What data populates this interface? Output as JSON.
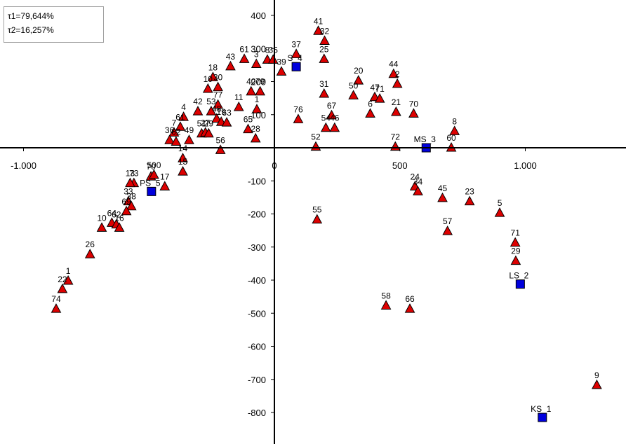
{
  "legend": {
    "tau1": "τ1=79,644%",
    "tau2": "τ2=16,257%"
  },
  "chart_data": {
    "type": "scatter",
    "title": "",
    "xlabel": "",
    "ylabel": "",
    "xlim": [
      -1100,
      1400
    ],
    "ylim": [
      -890,
      430
    ],
    "grid": false,
    "x_ticks": [
      {
        "value": -1000,
        "label": "-1.000"
      },
      {
        "value": 0,
        "label": "0"
      },
      {
        "value": 500,
        "label": "500"
      },
      {
        "value": 1000,
        "label": "1.000"
      }
    ],
    "y_ticks": [
      {
        "value": 400,
        "label": "400"
      },
      {
        "value": 300,
        "label": "300"
      },
      {
        "value": 200,
        "label": "200"
      },
      {
        "value": 100,
        "label": "100"
      },
      {
        "value": -100,
        "label": "-100"
      },
      {
        "value": -200,
        "label": "-200"
      },
      {
        "value": -300,
        "label": "-300"
      },
      {
        "value": -400,
        "label": "-400"
      },
      {
        "value": -500,
        "label": "-500"
      },
      {
        "value": -600,
        "label": "-600"
      },
      {
        "value": -700,
        "label": "-700"
      },
      {
        "value": -800,
        "label": "-800"
      }
    ],
    "colors": {
      "object_marker": "#dd0000",
      "variable_marker": "#0000dd",
      "axis": "#000000"
    },
    "series": [
      {
        "marker": "triangle",
        "points": [
          {
            "label": "41",
            "x": 175,
            "y": 355
          },
          {
            "label": "32",
            "x": 200,
            "y": 325
          },
          {
            "label": "37",
            "x": 87,
            "y": 285
          },
          {
            "label": "25",
            "x": 198,
            "y": 270
          },
          {
            "label": "44",
            "x": 475,
            "y": 225
          },
          {
            "label": "2",
            "x": 490,
            "y": 195
          },
          {
            "label": "20",
            "x": 335,
            "y": 205
          },
          {
            "label": "50",
            "x": 315,
            "y": 160
          },
          {
            "label": "47",
            "x": 400,
            "y": 155
          },
          {
            "label": "71",
            "x": 420,
            "y": 150
          },
          {
            "label": "31",
            "x": 198,
            "y": 165
          },
          {
            "label": "6",
            "x": 382,
            "y": 105
          },
          {
            "label": "21",
            "x": 485,
            "y": 110
          },
          {
            "label": "70",
            "x": 555,
            "y": 105
          },
          {
            "label": "67",
            "x": 228,
            "y": 100
          },
          {
            "label": "76",
            "x": 95,
            "y": 88
          },
          {
            "label": "54",
            "x": 205,
            "y": 62
          },
          {
            "label": "46",
            "x": 240,
            "y": 62
          },
          {
            "label": "52",
            "x": 165,
            "y": 5
          },
          {
            "label": "72",
            "x": 482,
            "y": 5
          },
          {
            "label": "60",
            "x": 705,
            "y": 2
          },
          {
            "label": "8",
            "x": 718,
            "y": 52
          },
          {
            "label": "24",
            "x": 560,
            "y": -115
          },
          {
            "label": "34",
            "x": 572,
            "y": -130
          },
          {
            "label": "45",
            "x": 670,
            "y": -150
          },
          {
            "label": "23",
            "x": 778,
            "y": -160
          },
          {
            "label": "5",
            "x": 898,
            "y": -195
          },
          {
            "label": "57",
            "x": 690,
            "y": -250
          },
          {
            "label": "71",
            "x": 960,
            "y": -285
          },
          {
            "label": "29",
            "x": 962,
            "y": -340
          },
          {
            "label": "55",
            "x": 170,
            "y": -215
          },
          {
            "label": "58",
            "x": 445,
            "y": -475
          },
          {
            "label": "66",
            "x": 540,
            "y": -485
          },
          {
            "label": "9",
            "x": 1285,
            "y": -715
          },
          {
            "label": "43",
            "x": -175,
            "y": 248
          },
          {
            "label": "61",
            "x": -120,
            "y": 270
          },
          {
            "label": "3",
            "x": -72,
            "y": 255
          },
          {
            "label": "8",
            "x": -28,
            "y": 268
          },
          {
            "label": "35",
            "x": -5,
            "y": 268
          },
          {
            "label": "39",
            "x": 28,
            "y": 232
          },
          {
            "label": "18",
            "x": -245,
            "y": 215
          },
          {
            "label": "10",
            "x": -265,
            "y": 180
          },
          {
            "label": "30",
            "x": -225,
            "y": 185
          },
          {
            "label": "40",
            "x": -93,
            "y": 172
          },
          {
            "label": "79",
            "x": -57,
            "y": 172
          },
          {
            "label": "42",
            "x": -305,
            "y": 112
          },
          {
            "label": "4",
            "x": -362,
            "y": 95
          },
          {
            "label": "77",
            "x": -225,
            "y": 132
          },
          {
            "label": "11",
            "x": -142,
            "y": 125
          },
          {
            "label": "1",
            "x": -70,
            "y": 118
          },
          {
            "label": "53",
            "x": -252,
            "y": 112
          },
          {
            "label": "48",
            "x": -230,
            "y": 90
          },
          {
            "label": "19",
            "x": -212,
            "y": 80
          },
          {
            "label": "63",
            "x": -190,
            "y": 78
          },
          {
            "label": "61",
            "x": -375,
            "y": 65
          },
          {
            "label": "7",
            "x": -400,
            "y": 48
          },
          {
            "label": "51",
            "x": -290,
            "y": 45
          },
          {
            "label": "27",
            "x": -275,
            "y": 48
          },
          {
            "label": "29",
            "x": -262,
            "y": 45
          },
          {
            "label": "49",
            "x": -340,
            "y": 25
          },
          {
            "label": "36",
            "x": -418,
            "y": 25
          },
          {
            "label": "62",
            "x": -392,
            "y": 20
          },
          {
            "label": "65",
            "x": -105,
            "y": 58
          },
          {
            "label": "28",
            "x": -75,
            "y": 30
          },
          {
            "label": "56",
            "x": -215,
            "y": -5
          },
          {
            "label": "14",
            "x": -365,
            "y": -30
          },
          {
            "label": "15",
            "x": -365,
            "y": -70
          },
          {
            "label": "17",
            "x": -437,
            "y": -115
          },
          {
            "label": "70",
            "x": -492,
            "y": -85
          },
          {
            "label": "500",
            "x": -480,
            "y": -80
          },
          {
            "label": "73",
            "x": -560,
            "y": -105
          },
          {
            "label": "13",
            "x": -575,
            "y": -105
          },
          {
            "label": "33",
            "x": -582,
            "y": -160
          },
          {
            "label": "38",
            "x": -570,
            "y": -175
          },
          {
            "label": "69",
            "x": -590,
            "y": -190
          },
          {
            "label": "64",
            "x": -648,
            "y": -225
          },
          {
            "label": "62",
            "x": -630,
            "y": -230
          },
          {
            "label": "16",
            "x": -618,
            "y": -240
          },
          {
            "label": "10",
            "x": -688,
            "y": -240
          },
          {
            "label": "26",
            "x": -735,
            "y": -320
          },
          {
            "label": "1",
            "x": -822,
            "y": -400
          },
          {
            "label": "22",
            "x": -845,
            "y": -425
          },
          {
            "label": "74",
            "x": -870,
            "y": -485
          }
        ]
      },
      {
        "marker": "square",
        "points": [
          {
            "label": "S_4",
            "x": 87,
            "y": 245
          },
          {
            "label": "MS_3",
            "x": 605,
            "y": 0
          },
          {
            "label": "PS_5",
            "x": -490,
            "y": -132
          },
          {
            "label": "LS_2",
            "x": 980,
            "y": -412
          },
          {
            "label": "KS_1",
            "x": 1068,
            "y": -815
          }
        ]
      }
    ]
  }
}
